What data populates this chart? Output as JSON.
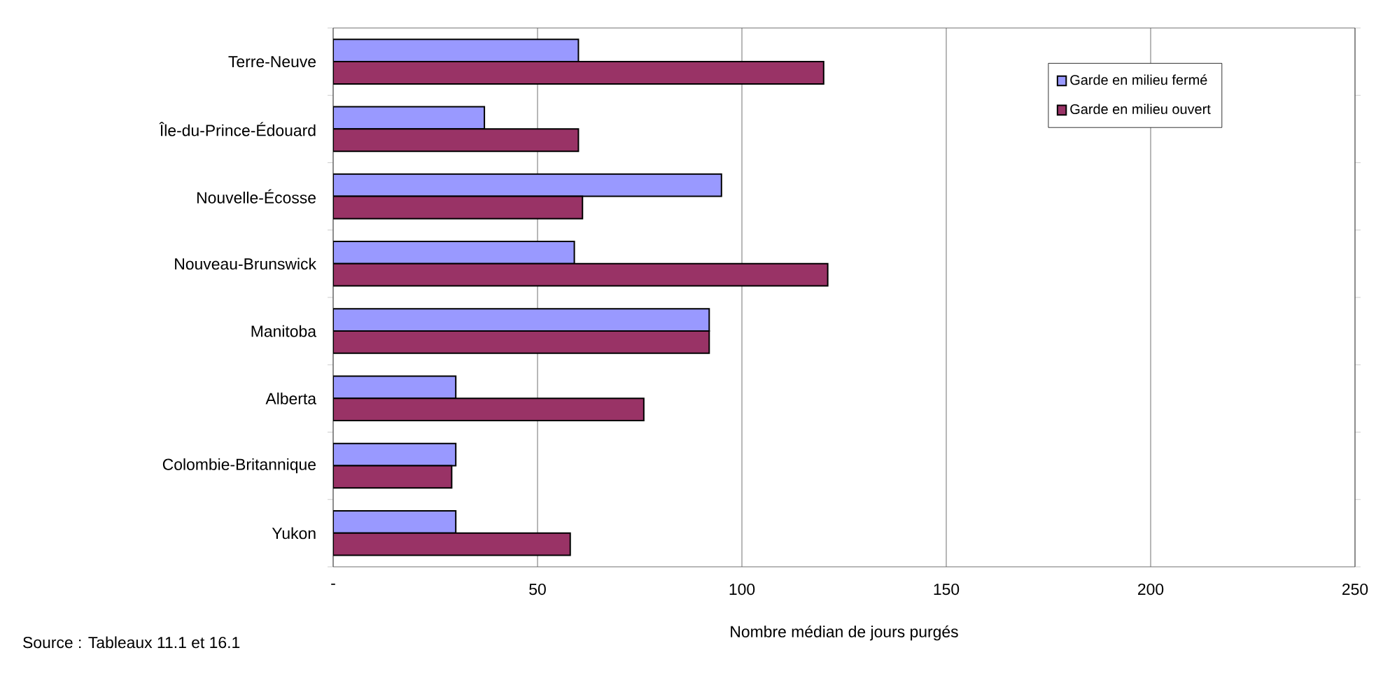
{
  "chart_data": {
    "type": "bar",
    "orientation": "horizontal",
    "categories": [
      "Terre-Neuve",
      "Île-du-Prince-Édouard",
      "Nouvelle-Écosse",
      "Nouveau-Brunswick",
      "Manitoba",
      "Alberta",
      "Colombie-Britannique",
      "Yukon"
    ],
    "series": [
      {
        "name": "Garde en milieu fermé",
        "color": "#9999ff",
        "values": [
          60,
          37,
          95,
          59,
          92,
          30,
          30,
          30
        ]
      },
      {
        "name": "Garde en milieu ouvert",
        "color": "#993366",
        "values": [
          120,
          60,
          61,
          121,
          92,
          76,
          29,
          58
        ]
      }
    ],
    "xlim": [
      0,
      250
    ],
    "xticks": [
      {
        "value": 0,
        "label": "-"
      },
      50,
      100,
      150,
      200,
      250
    ],
    "xlabel": "Nombre médian de jours purgés",
    "annotations": [
      "Source : Tableaux 11.1 et 16.1"
    ],
    "grid": "x",
    "legend": "top right"
  }
}
